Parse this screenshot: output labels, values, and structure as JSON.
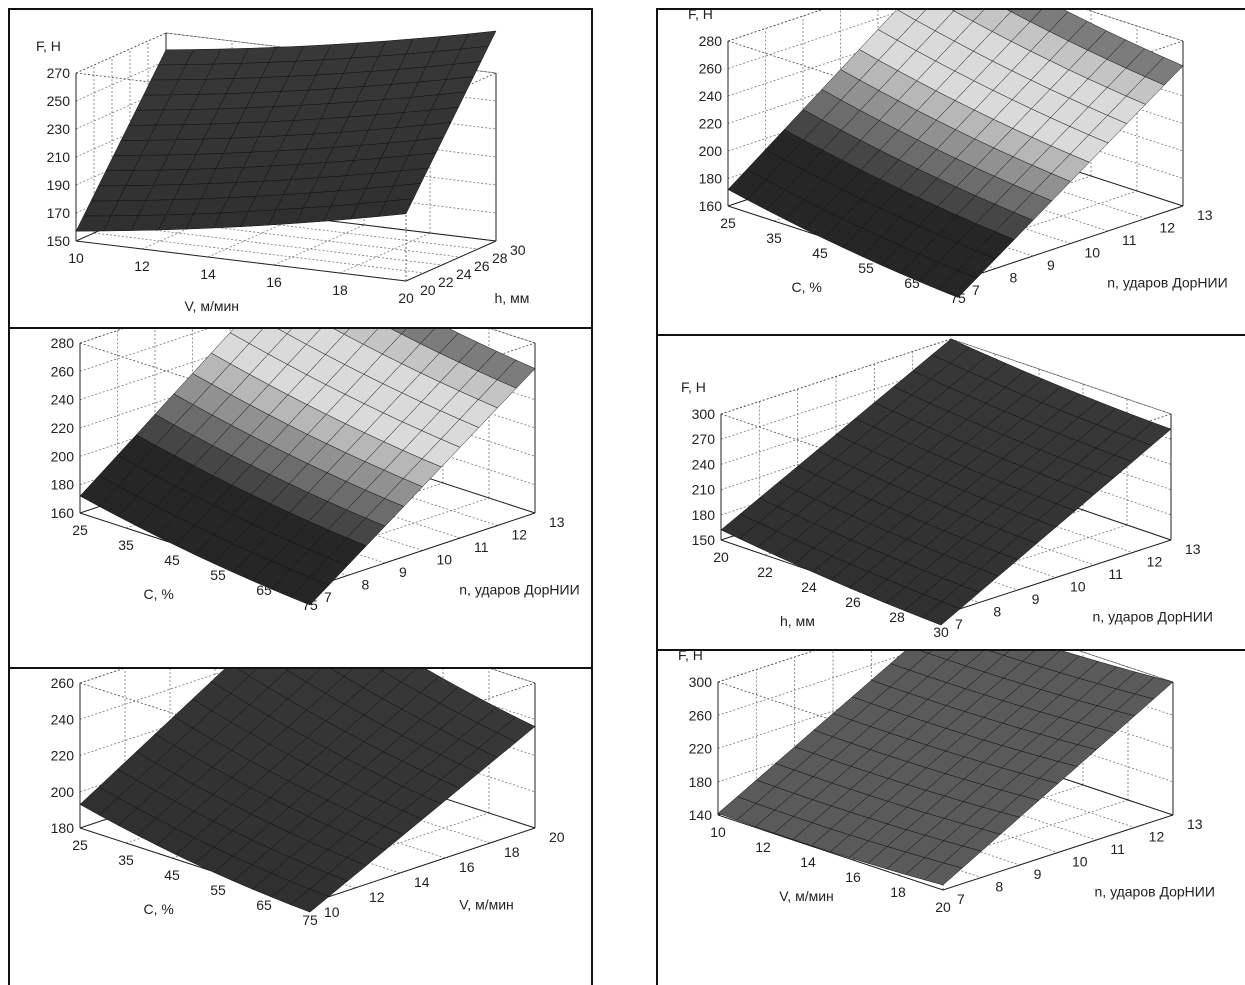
{
  "chart_data": [
    {
      "type": "surface",
      "zlabel": "F, Н",
      "xlabel": "V, м/мин",
      "ylabel": "h, мм",
      "x_ticks": [
        "10",
        "12",
        "14",
        "16",
        "18",
        "20"
      ],
      "y_ticks": [
        "20",
        "22",
        "24",
        "26",
        "28",
        "30"
      ],
      "z_ticks": [
        "150",
        "170",
        "190",
        "210",
        "230",
        "250",
        "270"
      ],
      "xlim": [
        10,
        20
      ],
      "ylim": [
        20,
        30
      ],
      "zlim": [
        150,
        270
      ],
      "corners": {
        "x_min_y_min": 157,
        "x_max_y_min": 198,
        "x_min_y_max": 258,
        "x_max_y_max": 300
      },
      "shading": "dark"
    },
    {
      "type": "surface",
      "zlabel": "F, Н",
      "xlabel": "C, %",
      "ylabel": "n, ударов ДорНИИ",
      "x_ticks": [
        "25",
        "35",
        "45",
        "55",
        "65",
        "75"
      ],
      "y_ticks": [
        "7",
        "8",
        "9",
        "10",
        "11",
        "12",
        "13"
      ],
      "z_ticks": [
        "160",
        "180",
        "200",
        "220",
        "240",
        "260",
        "280"
      ],
      "xlim": [
        25,
        75
      ],
      "ylim": [
        7,
        13
      ],
      "zlim": [
        160,
        280
      ],
      "corners": {
        "x_min_y_min": 172,
        "x_max_y_min": 148,
        "x_min_y_max": 292,
        "x_max_y_max": 262
      },
      "shading": "gradient"
    },
    {
      "type": "surface",
      "zlabel": "F, Н",
      "xlabel": "C, %",
      "ylabel": "V, м/мин",
      "x_ticks": [
        "25",
        "35",
        "45",
        "55",
        "65",
        "75"
      ],
      "y_ticks": [
        "10",
        "12",
        "14",
        "16",
        "18",
        "20"
      ],
      "z_ticks": [
        "180",
        "200",
        "220",
        "240",
        "260"
      ],
      "xlim": [
        25,
        75
      ],
      "ylim": [
        10,
        20
      ],
      "zlim": [
        180,
        260
      ],
      "corners": {
        "x_min_y_min": 193,
        "x_max_y_min": 175,
        "x_min_y_max": 268,
        "x_max_y_max": 236
      },
      "shading": "dark"
    },
    {
      "type": "surface",
      "zlabel": "F, Н",
      "xlabel": "C, %",
      "ylabel": "n, ударов ДорНИИ",
      "x_ticks": [
        "25",
        "35",
        "45",
        "55",
        "65",
        "75"
      ],
      "y_ticks": [
        "7",
        "8",
        "9",
        "10",
        "11",
        "12",
        "13"
      ],
      "z_ticks": [
        "160",
        "180",
        "200",
        "220",
        "240",
        "260",
        "280"
      ],
      "xlim": [
        25,
        75
      ],
      "ylim": [
        7,
        13
      ],
      "zlim": [
        160,
        280
      ],
      "corners": {
        "x_min_y_min": 172,
        "x_max_y_min": 148,
        "x_min_y_max": 292,
        "x_max_y_max": 262
      },
      "shading": "gradient"
    },
    {
      "type": "surface",
      "zlabel": "F, Н",
      "xlabel": "h, мм",
      "ylabel": "n, ударов ДорНИИ",
      "x_ticks": [
        "20",
        "22",
        "24",
        "26",
        "28",
        "30"
      ],
      "y_ticks": [
        "7",
        "8",
        "9",
        "10",
        "11",
        "12",
        "13"
      ],
      "z_ticks": [
        "150",
        "180",
        "210",
        "240",
        "270",
        "300"
      ],
      "xlim": [
        20,
        30
      ],
      "ylim": [
        7,
        13
      ],
      "zlim": [
        150,
        300
      ],
      "corners": {
        "x_min_y_min": 162,
        "x_max_y_min": 138,
        "x_min_y_max": 300,
        "x_max_y_max": 282
      },
      "shading": "dark"
    },
    {
      "type": "surface",
      "zlabel": "F, Н",
      "xlabel": "V, м/мин",
      "ylabel": "n, ударов ДорНИИ",
      "x_ticks": [
        "10",
        "12",
        "14",
        "16",
        "18",
        "20"
      ],
      "y_ticks": [
        "7",
        "8",
        "9",
        "10",
        "11",
        "12",
        "13"
      ],
      "z_ticks": [
        "140",
        "180",
        "220",
        "260",
        "300"
      ],
      "xlim": [
        10,
        20
      ],
      "ylim": [
        7,
        13
      ],
      "zlim": [
        140,
        300
      ],
      "corners": {
        "x_min_y_min": 142,
        "x_max_y_min": 146,
        "x_min_y_max": 292,
        "x_max_y_max": 300
      },
      "shading": "medium"
    }
  ]
}
